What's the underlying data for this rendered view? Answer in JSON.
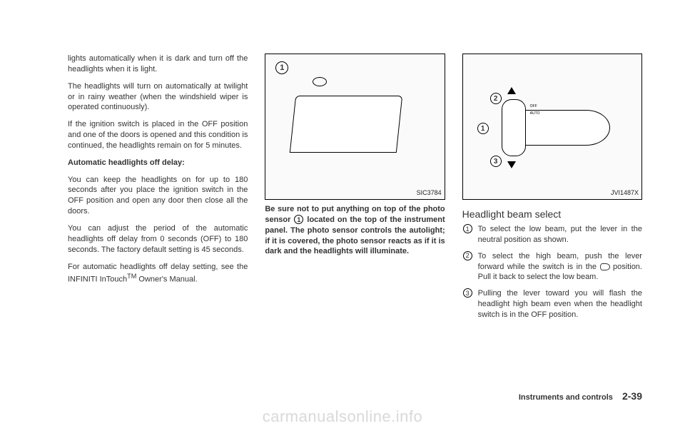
{
  "col1": {
    "p1": "lights automatically when it is dark and turn off the headlights when it is light.",
    "p2": "The headlights will turn on automatically at twilight or in rainy weather (when the windshield wiper is operated continuously).",
    "p3": "If the ignition switch is placed in the OFF position and one of the doors is opened and this condition is continued, the headlights remain on for 5 minutes.",
    "h1": "Automatic headlights off delay:",
    "p4": "You can keep the headlights on for up to 180 seconds after you place the ignition switch in the OFF position and open any door then close all the doors.",
    "p5": "You can adjust the period of the automatic headlights off delay from 0 seconds (OFF) to 180 seconds. The factory default setting is 45 seconds.",
    "p6a": "For automatic headlights off delay setting, see the INFINITI InTouch",
    "p6b": "TM",
    "p6c": " Owner's Manual."
  },
  "col2": {
    "figid": "SIC3784",
    "bubble": "1",
    "cap_a": "Be sure not to put anything on top of the photo sensor ",
    "cap_b": " located on the top of the instrument panel. The photo sensor controls the autolight; if it is covered, the photo sensor reacts as if it is dark and the headlights will illuminate.",
    "cap_num": "1"
  },
  "col3": {
    "figid": "JVI1487X",
    "b1": "1",
    "b2": "2",
    "b3": "3",
    "knob_labels": {
      "l1": "OFF",
      "l2": "AUTO",
      "l3": "",
      "l4": ""
    },
    "heading": "Headlight beam select",
    "items": [
      {
        "n": "1",
        "t": "To select the low beam, put the lever in the neutral position as shown."
      },
      {
        "n": "2",
        "t_a": "To select the high beam, push the lever forward while the switch is in the ",
        "t_b": " position. Pull it back to select the low beam."
      },
      {
        "n": "3",
        "t": "Pulling the lever toward you will flash the headlight high beam even when the headlight switch is in the OFF position."
      }
    ]
  },
  "footer": {
    "section": "Instruments and controls",
    "page": "2-39"
  },
  "watermark": "carmanualsonline.info"
}
